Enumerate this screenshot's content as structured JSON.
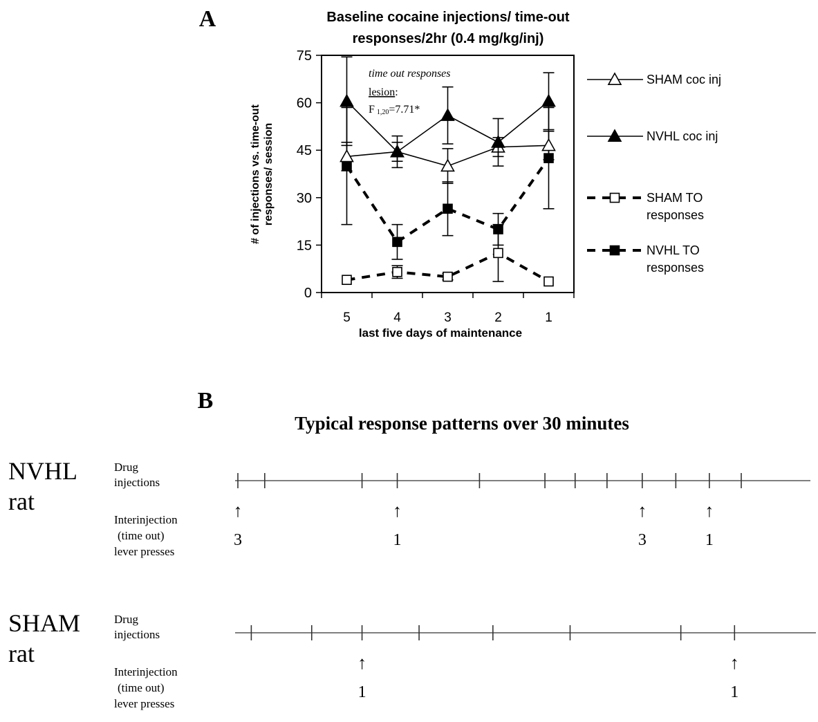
{
  "panel_a": {
    "letter": "A",
    "title_lines": [
      "Baseline cocaine injections/ time-out",
      "responses/2hr (0.4 mg/kg/inj)"
    ],
    "ylabel_lines": [
      "# of injections vs. time-out",
      "responses/ session"
    ],
    "xlabel": "last five days of maintenance",
    "annotation": {
      "line1": "time out responses",
      "line2_underlined": "lesion",
      "line2_suffix": ":",
      "stat_prefix": "F",
      "stat_sub": "1,20",
      "stat_suffix": "=7.71*"
    }
  },
  "chart_data": {
    "type": "line",
    "title": "Baseline cocaine injections/ time-out responses/2hr (0.4 mg/kg/inj)",
    "xlabel": "last five days of maintenance",
    "ylabel": "# of injections vs. time-out responses/ session",
    "categories": [
      "5",
      "4",
      "3",
      "2",
      "1"
    ],
    "ylim": [
      0,
      75
    ],
    "yticks": [
      0,
      15,
      30,
      45,
      60,
      75
    ],
    "legend_position": "right",
    "series": [
      {
        "name": "SHAM coc inj",
        "marker": "open-triangle",
        "line": "solid",
        "values": [
          43,
          44.5,
          40,
          46,
          46.5
        ],
        "error": [
          4.5,
          3,
          5.5,
          3,
          4.5
        ]
      },
      {
        "name": "NVHL coc inj",
        "marker": "filled-triangle",
        "line": "solid",
        "values": [
          60.5,
          44.5,
          56,
          47.5,
          60.5
        ],
        "error": [
          14,
          5,
          9,
          7.5,
          9
        ]
      },
      {
        "name": "SHAM TO responses",
        "marker": "open-square",
        "line": "dashed",
        "values": [
          4,
          6.5,
          5,
          12.5,
          3.5
        ],
        "error": [
          0,
          2,
          1,
          9,
          0
        ]
      },
      {
        "name": "NVHL TO responses",
        "marker": "filled-square",
        "line": "dashed",
        "values": [
          40,
          16,
          26.5,
          20,
          42.5
        ],
        "error": [
          18.5,
          5.5,
          8.5,
          5,
          16
        ]
      }
    ]
  },
  "panel_b": {
    "letter": "B",
    "title": "Typical response patterns over 30 minutes",
    "rows": [
      {
        "name_lines": [
          "NVHL",
          "rat"
        ],
        "drug_lines": [
          "Drug",
          "injections"
        ],
        "lever_lines": [
          "Interinjection",
          "(time out)",
          "lever presses"
        ],
        "injection_times": [
          0,
          1.6,
          7.4,
          9.5,
          14.4,
          18.3,
          20.1,
          22.0,
          24.1,
          26.1,
          28.1,
          30
        ],
        "markers": [
          {
            "t": 0,
            "count": "3"
          },
          {
            "t": 9.5,
            "count": "1"
          },
          {
            "t": 24.1,
            "count": "3"
          },
          {
            "t": 28.1,
            "count": "1"
          }
        ]
      },
      {
        "name_lines": [
          "SHAM",
          "rat"
        ],
        "drug_lines": [
          "Drug",
          "injections"
        ],
        "lever_lines": [
          "Interinjection",
          "(time out)",
          "lever presses"
        ],
        "injection_times": [
          0.8,
          4.4,
          7.4,
          10.8,
          15.2,
          19.8,
          26.4,
          29.6
        ],
        "markers": [
          {
            "t": 7.4,
            "count": "1"
          },
          {
            "t": 29.6,
            "count": "1"
          }
        ]
      }
    ]
  }
}
